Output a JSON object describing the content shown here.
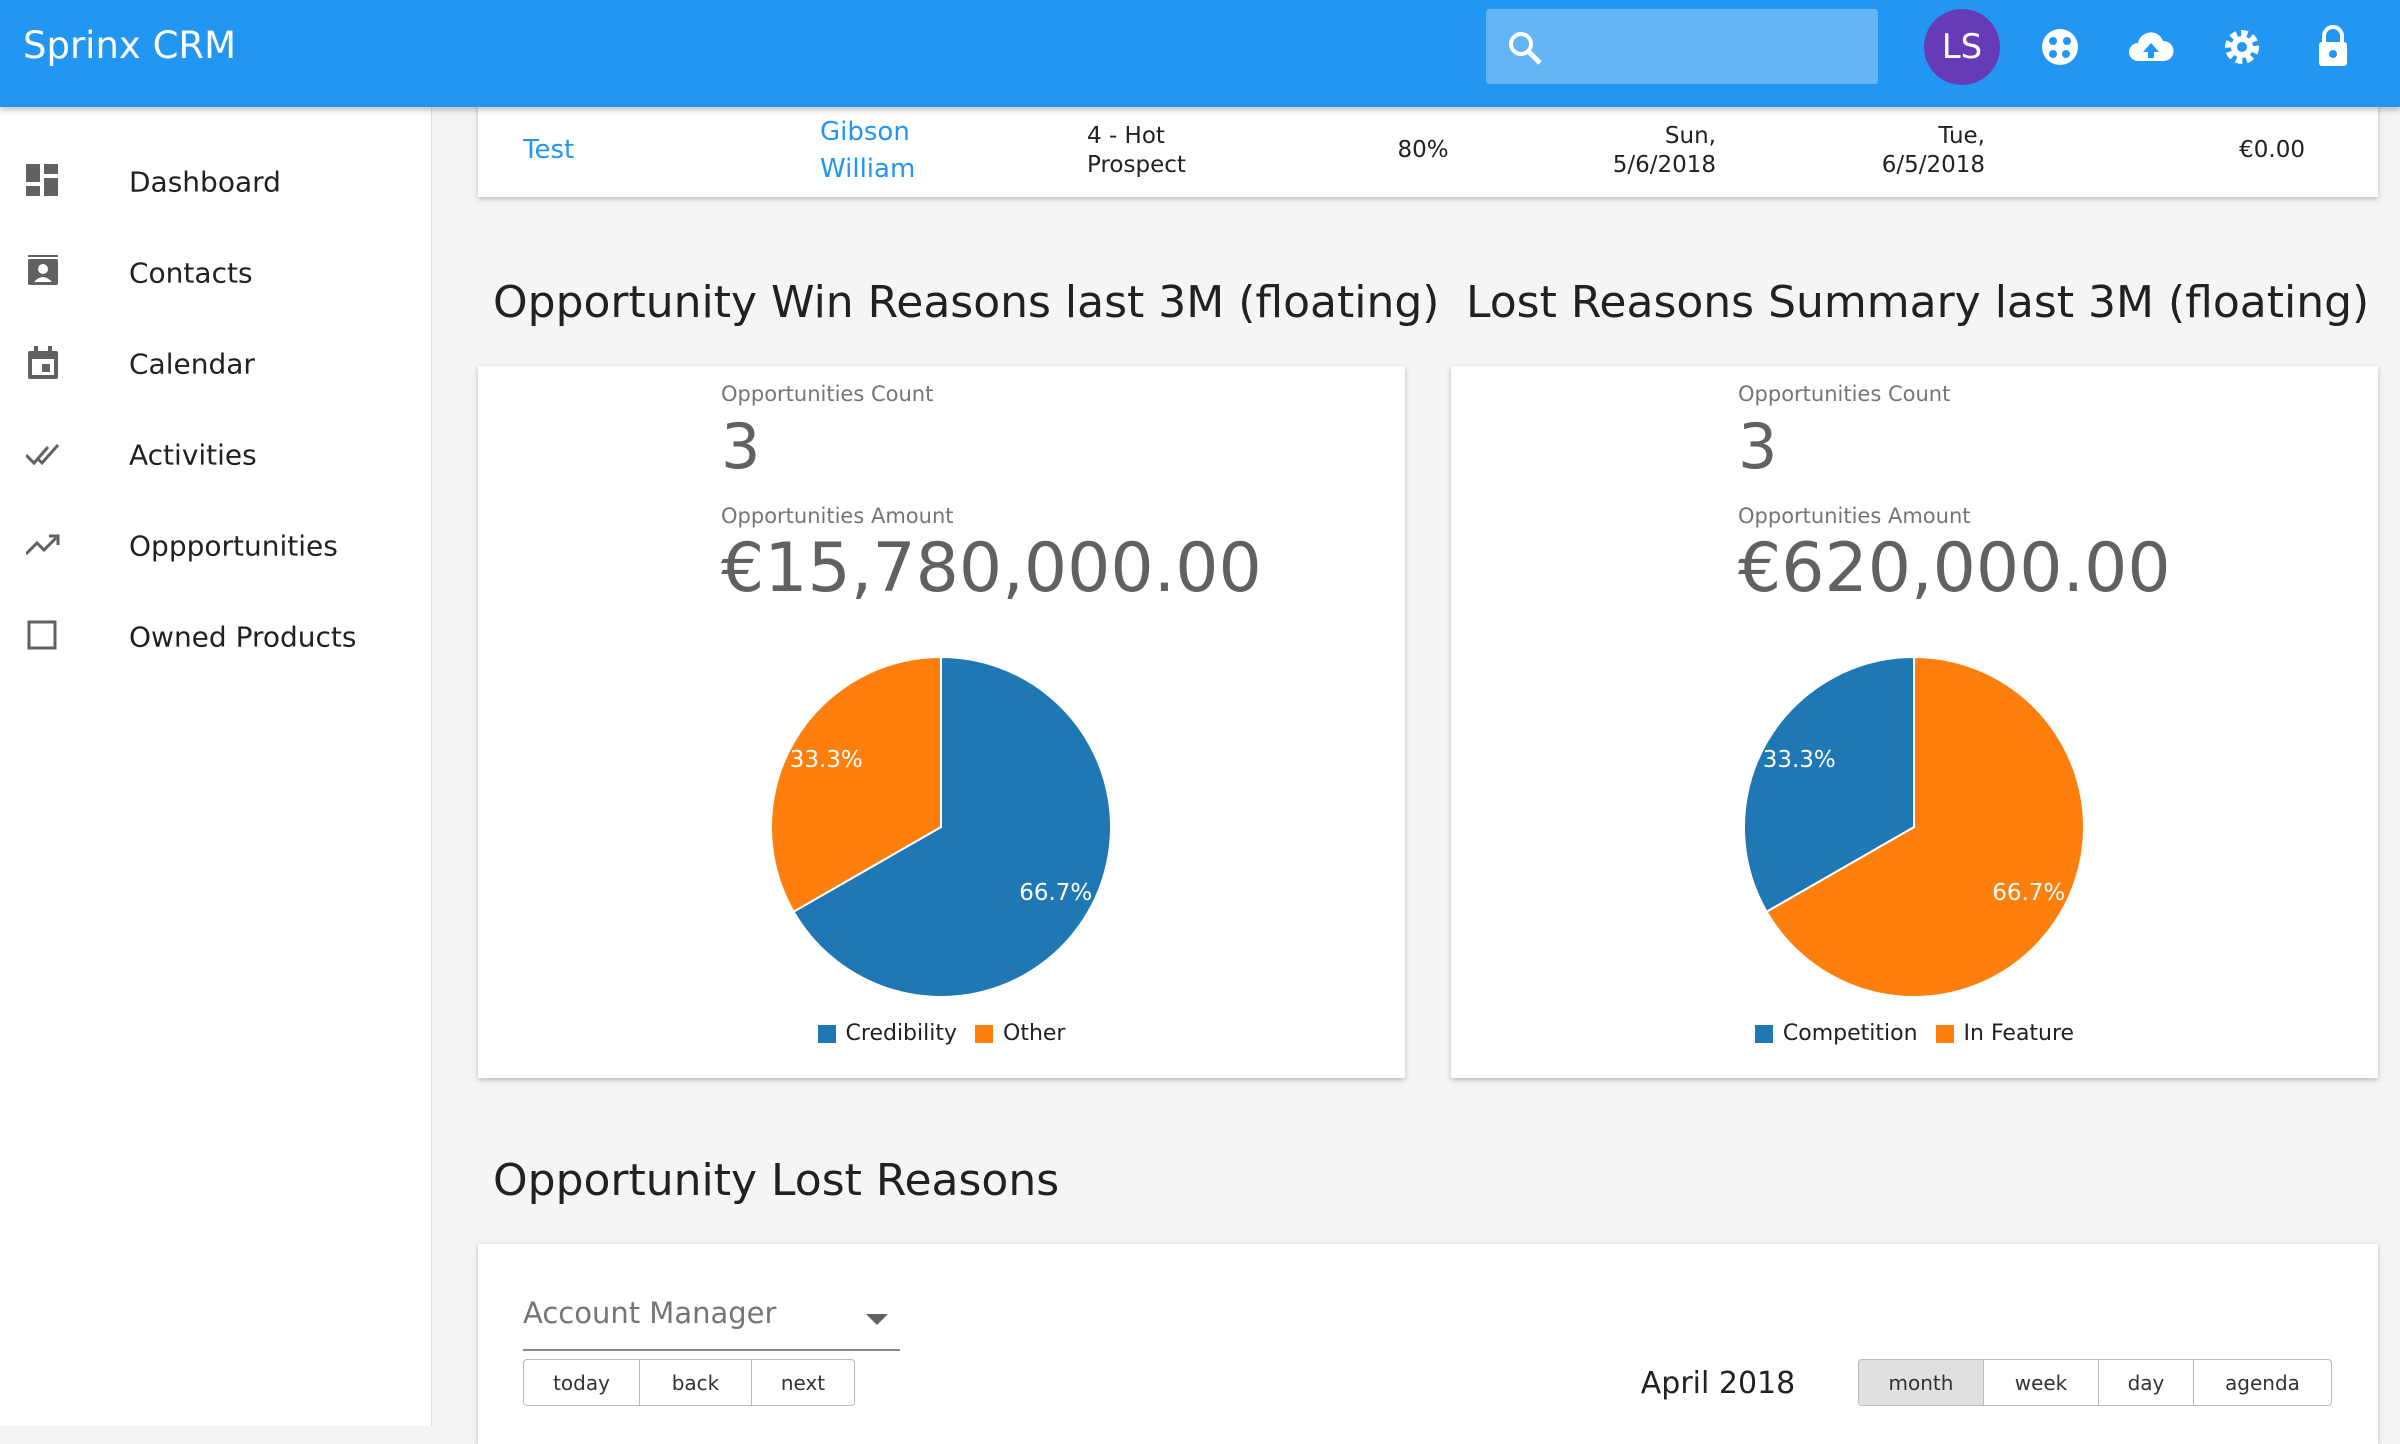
{
  "header": {
    "title": "Sprinx CRM",
    "avatar": "LS"
  },
  "sidebar": {
    "items": [
      "Dashboard",
      "Contacts",
      "Calendar",
      "Activities",
      "Oppportunities",
      "Owned Products"
    ]
  },
  "table": {
    "rows": [
      [
        "Test",
        "Gibson William",
        "4 - Hot Prospect",
        "80%",
        "Sun, 5/6/2018",
        "Tue, 6/5/2018",
        "€0.00"
      ]
    ]
  },
  "panels": [
    {
      "title": "Opportunity Win Reasons last 3M (floating)",
      "count_label": "Opportunities Count",
      "count": 3,
      "amount_label": "Opportunities Amount",
      "amount": "€15,780,000.00",
      "chart": {
        "type": "pie",
        "categories": [
          "Credibility",
          "Other"
        ],
        "values": [
          66.7,
          33.3
        ],
        "value_labels": [
          "66.7%",
          "33.3%"
        ],
        "colors": [
          "#1f77b4",
          "#ff7f0e"
        ]
      }
    },
    {
      "title": "Lost Reasons Summary last 3M (floating)",
      "count_label": "Opportunities Count",
      "count": 3,
      "amount_label": "Opportunities Amount",
      "amount": "€620,000.00",
      "chart": {
        "type": "pie",
        "categories": [
          "Competition",
          "In Feature"
        ],
        "values": [
          33.3,
          66.7
        ],
        "value_labels": [
          "33.3%",
          "66.7%"
        ],
        "colors": [
          "#1f77b4",
          "#ff7f0e"
        ]
      }
    }
  ],
  "lost_reasons": {
    "title": "Opportunity Lost Reasons",
    "filter": "Account Manager",
    "nav_buttons": [
      "today",
      "back",
      "next"
    ],
    "period": "April 2018",
    "view_buttons": [
      "month",
      "week",
      "day",
      "agenda"
    ]
  }
}
